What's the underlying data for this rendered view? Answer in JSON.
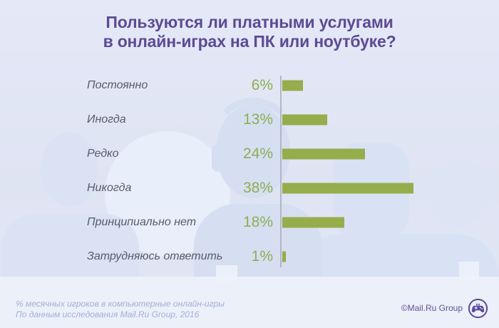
{
  "title": {
    "line1": "Пользуются ли платными услугами",
    "line2": "в онлайн-играх на ПК или ноутбуке?"
  },
  "chart_data": {
    "type": "bar",
    "orientation": "horizontal",
    "title": "Пользуются ли платными услугами в онлайн-играх на ПК или ноутбуке?",
    "categories": [
      "Постоянно",
      "Иногда",
      "Редко",
      "Никогда",
      "Принципиально нет",
      "Затрудняюсь ответить"
    ],
    "values": [
      6,
      13,
      24,
      38,
      18,
      1
    ],
    "value_labels": [
      "6%",
      "13%",
      "24%",
      "38%",
      "18%",
      "1%"
    ],
    "unit": "%",
    "xlim": [
      0,
      40
    ],
    "grid": false,
    "legend": null,
    "axis_baseline": "left-vertical",
    "bar_color": "#95ad4b",
    "value_label_color": "#8ead52",
    "category_label_color": "#585b6b",
    "axis_line_color": "#b3b6c2"
  },
  "footer": {
    "note_line1": "% месячных игроков в компьютерные онлайн-игры",
    "note_line2": "По данным исследования Mail.Ru Group, 2016",
    "credit": "©Mail.Ru Group"
  },
  "icons": {
    "gamepad": "gamepad-in-circle-icon"
  },
  "colors": {
    "background": "#e1e6f5",
    "title": "#5c4b94",
    "footer_note": "#a2b0d8",
    "credit": "#5f5095",
    "silhouette": "#d5dff1"
  }
}
